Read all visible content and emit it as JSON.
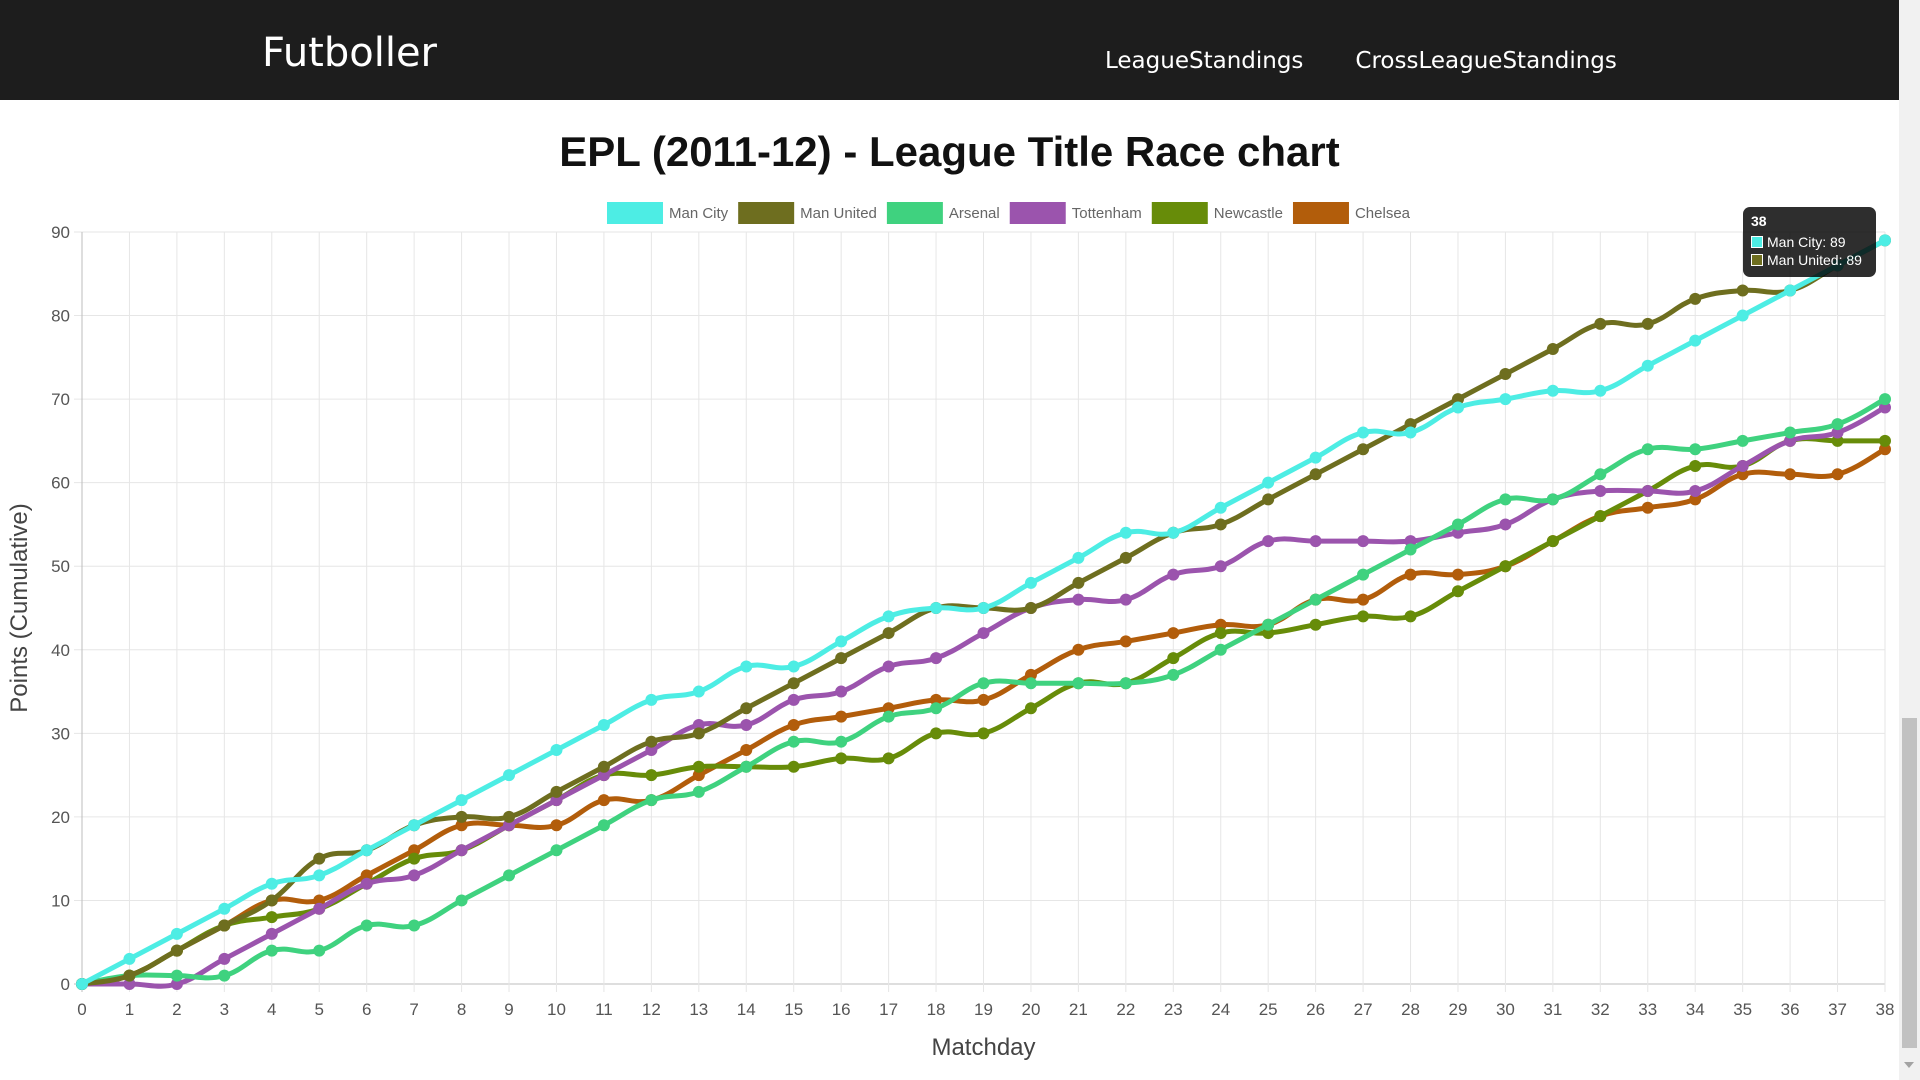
{
  "nav": {
    "brand": "Futboller",
    "links": [
      "LeagueStandings",
      "CrossLeagueStandings"
    ]
  },
  "tooltip": {
    "title": "38",
    "rows": [
      {
        "label": "Man City: 89",
        "color": "#4ded e5"
      },
      {
        "label": "Man United: 89",
        "color": "#6b6b1e"
      }
    ]
  },
  "chart_data": {
    "type": "line",
    "title": "EPL (2011-12) - League Title Race chart",
    "xlabel": "Matchday",
    "ylabel": "Points (Cumulative)",
    "x": [
      0,
      1,
      2,
      3,
      4,
      5,
      6,
      7,
      8,
      9,
      10,
      11,
      12,
      13,
      14,
      15,
      16,
      17,
      18,
      19,
      20,
      21,
      22,
      23,
      24,
      25,
      26,
      27,
      28,
      29,
      30,
      31,
      32,
      33,
      34,
      35,
      36,
      37,
      38
    ],
    "xlim": [
      0,
      38
    ],
    "ylim": [
      0,
      90
    ],
    "yticks": [
      0,
      10,
      20,
      30,
      40,
      50,
      60,
      70,
      80,
      90
    ],
    "grid": true,
    "legend_position": "top",
    "series": [
      {
        "name": "Man City",
        "color": "#4dede4",
        "values": [
          0,
          3,
          6,
          9,
          12,
          13,
          16,
          19,
          22,
          25,
          28,
          31,
          34,
          35,
          38,
          38,
          41,
          44,
          45,
          45,
          48,
          51,
          54,
          54,
          57,
          60,
          63,
          66,
          66,
          69,
          70,
          71,
          71,
          74,
          77,
          80,
          83,
          86,
          89
        ]
      },
      {
        "name": "Man United",
        "color": "#6e6e1f",
        "values": [
          0,
          1,
          4,
          7,
          10,
          15,
          16,
          19,
          20,
          20,
          23,
          26,
          29,
          30,
          33,
          36,
          39,
          42,
          45,
          45,
          45,
          48,
          51,
          54,
          55,
          58,
          61,
          64,
          67,
          70,
          73,
          76,
          79,
          79,
          82,
          83,
          83,
          86,
          89
        ]
      },
      {
        "name": "Arsenal",
        "color": "#3fd27f",
        "values": [
          0,
          1,
          1,
          1,
          4,
          4,
          7,
          7,
          10,
          13,
          16,
          19,
          22,
          23,
          26,
          29,
          29,
          32,
          33,
          36,
          36,
          36,
          36,
          37,
          40,
          43,
          46,
          49,
          52,
          55,
          58,
          58,
          61,
          64,
          64,
          65,
          66,
          67,
          70
        ]
      },
      {
        "name": "Tottenham",
        "color": "#9b54ad",
        "values": [
          0,
          0,
          0,
          3,
          6,
          9,
          12,
          13,
          16,
          19,
          22,
          25,
          28,
          31,
          31,
          34,
          35,
          38,
          39,
          42,
          45,
          46,
          46,
          49,
          50,
          53,
          53,
          53,
          53,
          54,
          55,
          58,
          59,
          59,
          59,
          62,
          65,
          66,
          69
        ]
      },
      {
        "name": "Newcastle",
        "color": "#678c09",
        "values": [
          0,
          1,
          4,
          7,
          8,
          9,
          12,
          15,
          16,
          19,
          22,
          25,
          25,
          26,
          26,
          26,
          27,
          27,
          30,
          30,
          33,
          36,
          36,
          39,
          42,
          42,
          43,
          44,
          44,
          47,
          50,
          53,
          56,
          59,
          62,
          62,
          65,
          65,
          65
        ]
      },
      {
        "name": "Chelsea",
        "color": "#b25d0b",
        "values": [
          0,
          1,
          4,
          7,
          10,
          10,
          13,
          16,
          19,
          19,
          19,
          22,
          22,
          25,
          28,
          31,
          32,
          33,
          34,
          34,
          37,
          40,
          41,
          42,
          43,
          43,
          46,
          46,
          49,
          49,
          50,
          53,
          56,
          57,
          58,
          61,
          61,
          61,
          64
        ]
      }
    ]
  }
}
